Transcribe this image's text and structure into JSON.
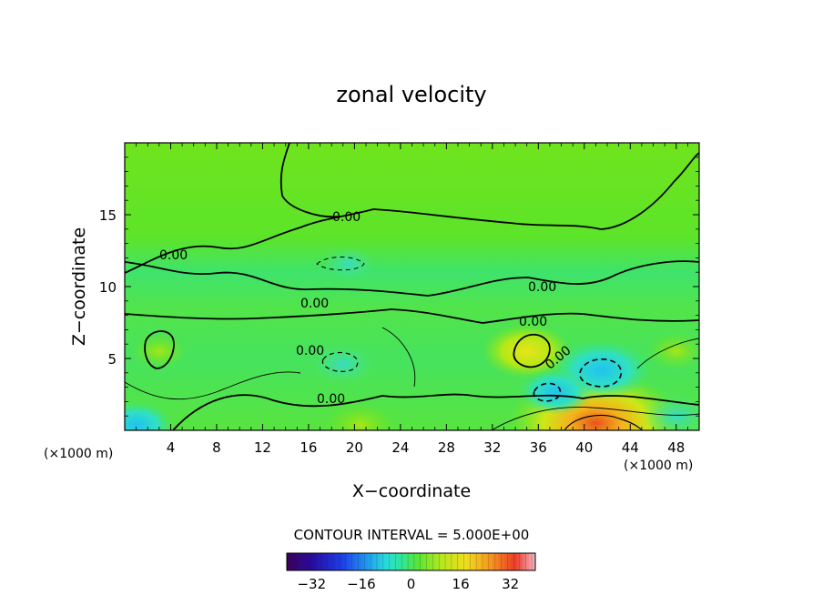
{
  "chart_data": {
    "type": "heatmap",
    "title": "zonal velocity",
    "xlabel": "X−coordinate",
    "ylabel": "Z−coordinate",
    "x_unit_left": "(×1000 m)",
    "x_unit_right": "(×1000 m)",
    "xlim": [
      0,
      50
    ],
    "ylim": [
      0,
      20
    ],
    "x_ticks": [
      4,
      8,
      12,
      16,
      20,
      24,
      28,
      32,
      36,
      40,
      44,
      48
    ],
    "y_ticks": [
      5,
      10,
      15
    ],
    "contour_interval_text": "CONTOUR INTERVAL = 5.000E+00",
    "contour_labels": [
      "0.00",
      "0.00",
      "0.00",
      "0.00",
      "0.00",
      "0.00",
      "0.00",
      "0.00"
    ],
    "colorbar": {
      "min": -40,
      "max": 40,
      "ticks": [
        -32,
        -16,
        0,
        16,
        32
      ]
    },
    "features": [
      {
        "x": 41,
        "z": 0.5,
        "value": 30
      },
      {
        "x": 35,
        "z": 5.5,
        "value": 12
      },
      {
        "x": 20.5,
        "z": 0.4,
        "value": 8
      },
      {
        "x": 41.5,
        "z": 4.2,
        "value": -14
      },
      {
        "x": 37.5,
        "z": 2.7,
        "value": -9
      },
      {
        "x": 19,
        "z": 4.6,
        "value": -6
      },
      {
        "x": 19.5,
        "z": 11.6,
        "value": -4
      },
      {
        "x": 3,
        "z": 5.5,
        "value": 5
      },
      {
        "x": 48,
        "z": 5.5,
        "value": 6
      },
      {
        "x": 1,
        "z": 0.4,
        "value": -9
      },
      {
        "x": 48,
        "z": 1,
        "value": -8
      }
    ]
  }
}
